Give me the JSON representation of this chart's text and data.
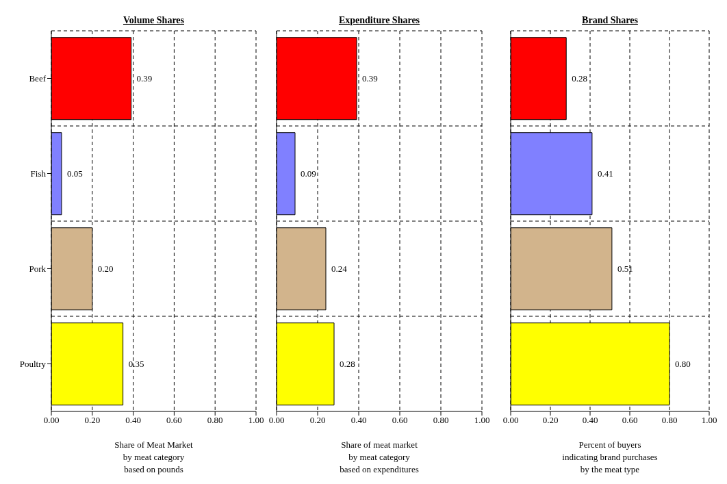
{
  "chart_data": [
    {
      "type": "bar",
      "orientation": "horizontal",
      "title": "Volume Shares",
      "xlabel": "Share of Meat Market\nby meat category\nbased on pounds",
      "categories": [
        "Beef",
        "Fish",
        "Pork",
        "Poultry"
      ],
      "values": [
        0.39,
        0.05,
        0.2,
        0.35
      ],
      "value_labels": [
        "0.39",
        "0.05",
        "0.20",
        "0.35"
      ],
      "colors": [
        "#ff0000",
        "#8080ff",
        "#d2b48c",
        "#ffff00"
      ],
      "xlim": [
        0,
        1
      ],
      "xticks": [
        {
          "value": 0,
          "label": "0.00"
        },
        {
          "value": 0.2,
          "label": "0.20"
        },
        {
          "value": 0.4,
          "label": "0.40"
        },
        {
          "value": 0.6,
          "label": "0.60"
        },
        {
          "value": 0.8,
          "label": "0.80"
        },
        {
          "value": 1,
          "label": "1.00"
        }
      ],
      "grid": true
    },
    {
      "type": "bar",
      "orientation": "horizontal",
      "title": "Expenditure Shares",
      "xlabel": "Share of meat market\nby meat category\nbased on expenditures",
      "categories": [
        null,
        null,
        null,
        null
      ],
      "values": [
        0.39,
        0.09,
        0.24,
        0.28
      ],
      "value_labels": [
        "0.39",
        "0.09",
        "0.24",
        "0.28"
      ],
      "colors": [
        "#ff0000",
        "#8080ff",
        "#d2b48c",
        "#ffff00"
      ],
      "xlim": [
        0,
        1
      ],
      "xticks": [
        {
          "value": 0,
          "label": "0.00"
        },
        {
          "value": 0.2,
          "label": "0.20"
        },
        {
          "value": 0.4,
          "label": "0.40"
        },
        {
          "value": 0.6,
          "label": "0.60"
        },
        {
          "value": 0.8,
          "label": "0.80"
        },
        {
          "value": 1,
          "label": "1.00"
        }
      ],
      "grid": true,
      "tick_labels": "x"
    },
    {
      "type": "bar",
      "orientation": "horizontal",
      "title": "Brand Shares",
      "xlabel": "Percent of buyers\nindicating brand purchases\nby the meat type",
      "categories": [
        null,
        null,
        null,
        null
      ],
      "values": [
        0.28,
        0.41,
        0.51,
        0.8
      ],
      "value_labels": [
        "0.28",
        "0.41",
        "0.51",
        "0.80"
      ],
      "colors": [
        "#ff0000",
        "#8080ff",
        "#d2b48c",
        "#ffff00"
      ],
      "xlim": [
        0,
        1
      ],
      "xticks": [
        {
          "value": 0,
          "label": "0.00"
        },
        {
          "value": 0.2,
          "label": "0.20"
        },
        {
          "value": 0.4,
          "label": "0.40"
        },
        {
          "value": 0.6,
          "label": "0.60"
        },
        {
          "value": 0.8,
          "label": "0.80"
        },
        {
          "value": 1,
          "label": "1.00"
        }
      ],
      "grid": true,
      "tick_labels": "x"
    }
  ]
}
